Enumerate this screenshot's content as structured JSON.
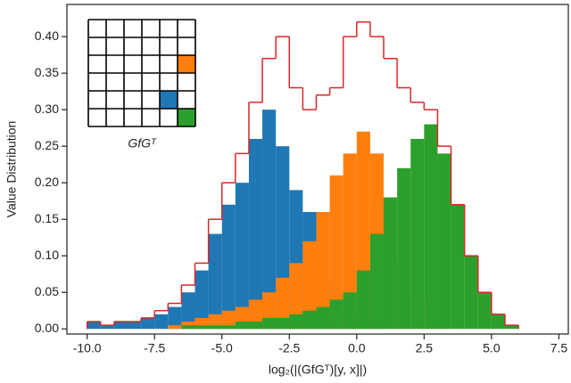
{
  "chart_data": {
    "type": "histogram",
    "y_label": "Value Distribution",
    "x_label": "log₂(|(GfGᵀ)[y, x]|)",
    "annotation": "GfGᵀ",
    "bins": [
      -10,
      -9.5,
      -9,
      -8.5,
      -8,
      -7.5,
      -7,
      -6.5,
      -6,
      -5.5,
      -5,
      -4.5,
      -4,
      -3.5,
      -3,
      -2.5,
      -2,
      -1.5,
      -1,
      -0.5,
      0,
      0.5,
      1,
      1.5,
      2,
      2.5,
      3,
      3.5,
      4,
      4.5,
      5,
      5.5,
      6
    ],
    "series": [
      {
        "style": "bar",
        "color": "#1f77b4",
        "values": [
          0.01,
          0.005,
          0.01,
          0.01,
          0.015,
          0.02,
          0.03,
          0.05,
          0.08,
          0.13,
          0.17,
          0.2,
          0.26,
          0.3,
          0.25,
          0.19,
          0.16,
          0.12,
          0.06,
          0.03,
          0.01,
          0.005,
          0,
          0,
          0,
          0,
          0,
          0,
          0,
          0,
          0,
          0
        ]
      },
      {
        "style": "bar",
        "color": "#ff7f0e",
        "values": [
          0,
          0,
          0,
          0,
          0,
          0,
          0.005,
          0.01,
          0.015,
          0.02,
          0.025,
          0.03,
          0.04,
          0.05,
          0.07,
          0.09,
          0.12,
          0.16,
          0.21,
          0.24,
          0.27,
          0.24,
          0.17,
          0.09,
          0.04,
          0.015,
          0.005,
          0,
          0,
          0,
          0,
          0
        ]
      },
      {
        "style": "bar",
        "color": "#2ca02c",
        "values": [
          0,
          0,
          0,
          0,
          0,
          0,
          0,
          0.005,
          0.005,
          0.005,
          0.005,
          0.01,
          0.01,
          0.015,
          0.015,
          0.02,
          0.025,
          0.03,
          0.04,
          0.05,
          0.08,
          0.13,
          0.18,
          0.22,
          0.26,
          0.28,
          0.24,
          0.17,
          0.1,
          0.05,
          0.02,
          0.005
        ]
      },
      {
        "style": "step",
        "color": "#d62728",
        "values": [
          0.01,
          0.005,
          0.01,
          0.01,
          0.015,
          0.025,
          0.035,
          0.06,
          0.09,
          0.15,
          0.2,
          0.24,
          0.31,
          0.37,
          0.4,
          0.33,
          0.3,
          0.32,
          0.33,
          0.4,
          0.42,
          0.4,
          0.37,
          0.33,
          0.31,
          0.3,
          0.25,
          0.17,
          0.1,
          0.05,
          0.02,
          0.005
        ]
      }
    ],
    "xlim": [
      -10.75,
      7.85
    ],
    "ylim": [
      -0.007,
      0.444
    ],
    "xticks": [
      {
        "value": -10,
        "label": "-10.0"
      },
      -7.5,
      {
        "value": -5,
        "label": "-5.0"
      },
      -2.5,
      {
        "value": 0,
        "label": "0.0"
      },
      2.5,
      {
        "value": 5,
        "label": "5.0"
      },
      7.5
    ],
    "yticks": [
      {
        "value": 0,
        "label": "0.00"
      },
      {
        "value": 0.05,
        "label": "0.05"
      },
      {
        "value": 0.1,
        "label": "0.10"
      },
      {
        "value": 0.15,
        "label": "0.15"
      },
      {
        "value": 0.2,
        "label": "0.20"
      },
      {
        "value": 0.25,
        "label": "0.25"
      },
      {
        "value": 0.3,
        "label": "0.30"
      },
      {
        "value": 0.35,
        "label": "0.35"
      },
      {
        "value": 0.4,
        "label": "0.40"
      }
    ]
  }
}
